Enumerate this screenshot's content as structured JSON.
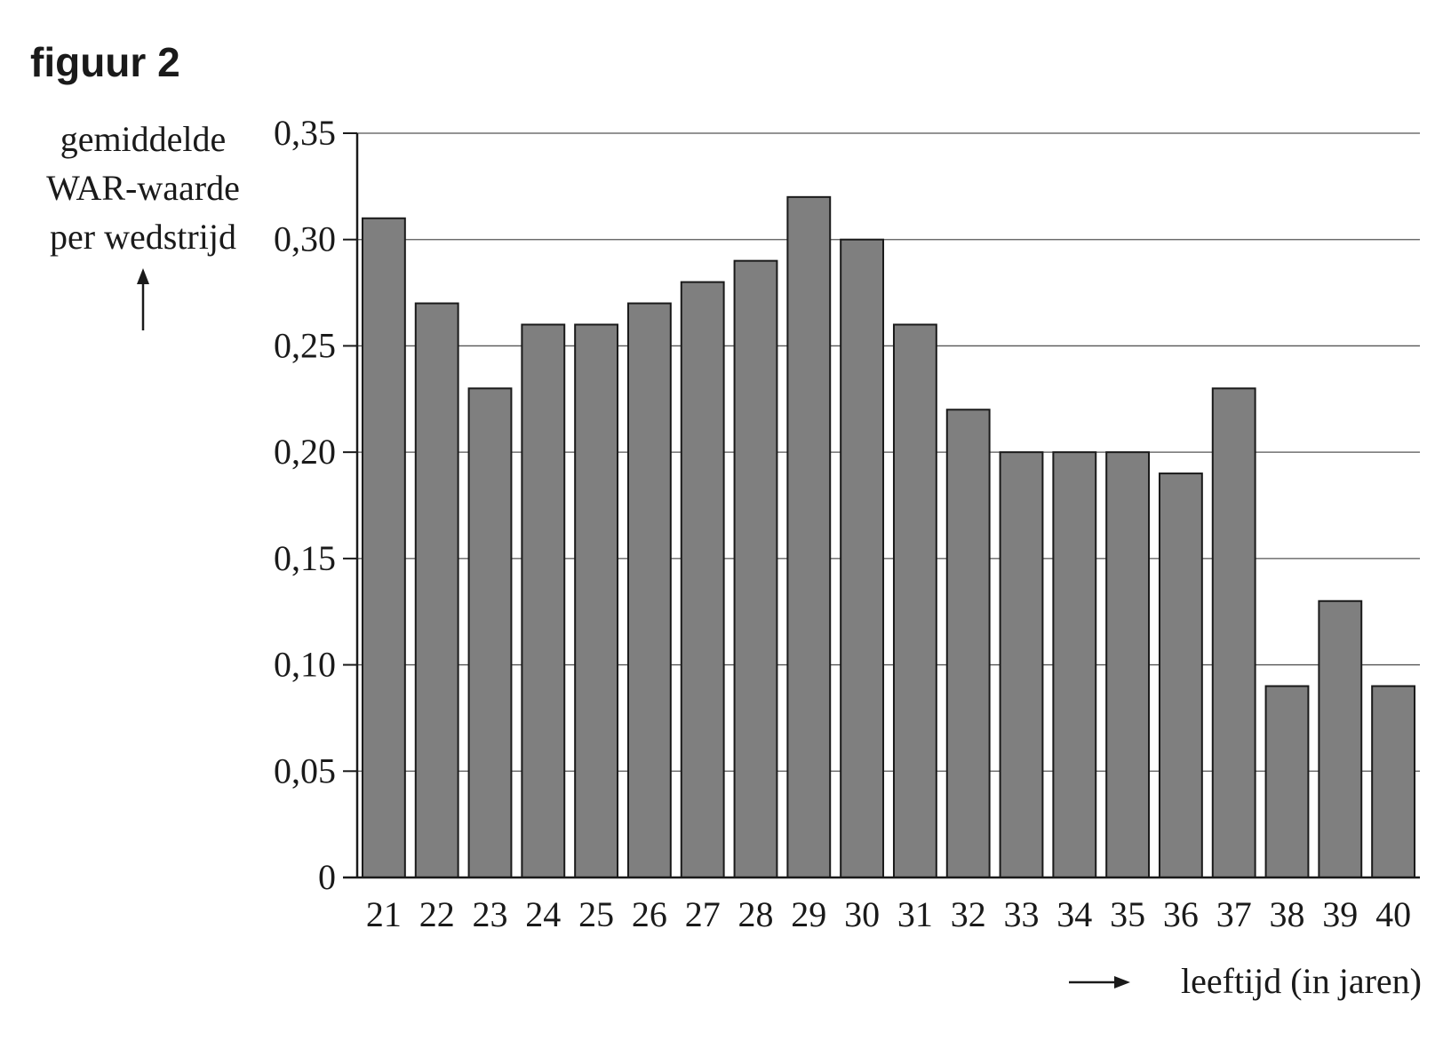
{
  "figure_label": "figuur 2",
  "chart_data": {
    "type": "bar",
    "title": "",
    "ylabel": [
      "gemiddelde",
      "WAR-waarde",
      "per wedstrijd"
    ],
    "xlabel": "leeftijd (in jaren)",
    "categories": [
      "21",
      "22",
      "23",
      "24",
      "25",
      "26",
      "27",
      "28",
      "29",
      "30",
      "31",
      "32",
      "33",
      "34",
      "35",
      "36",
      "37",
      "38",
      "39",
      "40"
    ],
    "values": [
      0.31,
      0.27,
      0.23,
      0.26,
      0.26,
      0.27,
      0.28,
      0.29,
      0.32,
      0.3,
      0.26,
      0.22,
      0.2,
      0.2,
      0.2,
      0.19,
      0.23,
      0.09,
      0.13,
      0.09
    ],
    "ylim": [
      0,
      0.35
    ],
    "yticks": [
      0,
      0.05,
      0.1,
      0.15,
      0.2,
      0.25,
      0.3,
      0.35
    ],
    "ytick_labels": [
      "0",
      "0,05",
      "0,10",
      "0,15",
      "0,20",
      "0,25",
      "0,30",
      "0,35"
    ],
    "grid": "horizontal",
    "bar_color": "#7f7f7f",
    "axis_color": "#1a1a1a"
  }
}
